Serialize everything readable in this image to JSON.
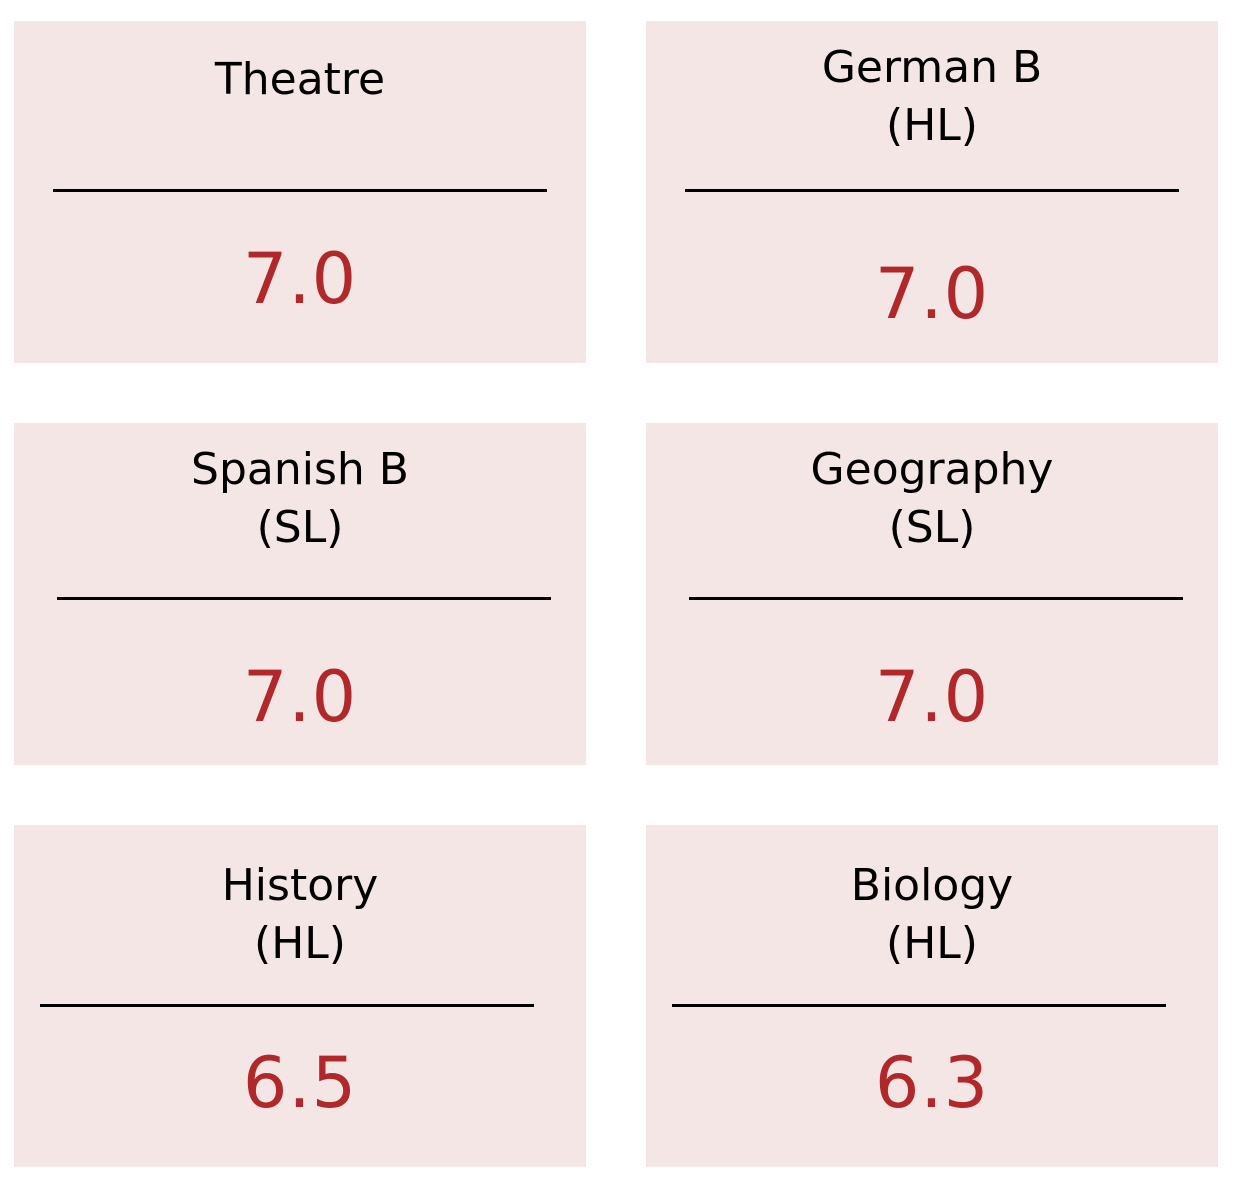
{
  "colors": {
    "card_background": "#f5e6e6",
    "score_text": "#b0282a",
    "label_text": "#000000"
  },
  "cards": [
    {
      "subject": "Theatre",
      "level": "",
      "score": "7.0"
    },
    {
      "subject": "German B",
      "level": "(HL)",
      "score": "7.0"
    },
    {
      "subject": "Spanish B",
      "level": "(SL)",
      "score": "7.0"
    },
    {
      "subject": "Geography",
      "level": "(SL)",
      "score": "7.0"
    },
    {
      "subject": "History",
      "level": "(HL)",
      "score": "6.5"
    },
    {
      "subject": "Biology",
      "level": "(HL)",
      "score": "6.3"
    }
  ]
}
